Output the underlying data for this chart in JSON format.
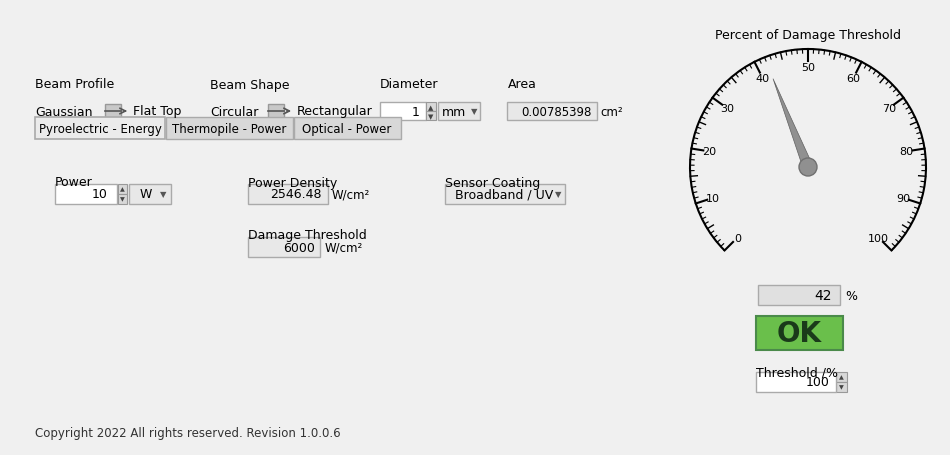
{
  "bg_color": "#f0f0f0",
  "title": "Percent of Damage Threshold",
  "gauge_value": 42,
  "ok_color": "#6abf4b",
  "ok_text": "OK",
  "ok_text_color": "#1a3a1a",
  "percent_value": "42",
  "threshold_value": "100",
  "beam_profile_label": "Beam Profile",
  "beam_shape_label": "Beam Shape",
  "gaussian_label": "Gaussian",
  "flat_top_label": "Flat Top",
  "circular_label": "Circular",
  "rectangular_label": "Rectangular",
  "diameter_label": "Diameter",
  "area_label": "Area",
  "diameter_value": "1",
  "diameter_unit": "mm",
  "area_value": "0.00785398",
  "area_unit": "cm²",
  "tab1": "Pyroelectric - Energy",
  "tab2": "Thermopile - Power",
  "tab3": "Optical - Power",
  "power_label": "Power",
  "power_value": "10",
  "power_unit": "W",
  "power_density_label": "Power Density",
  "power_density_value": "2546.48",
  "power_density_unit": "W/cm²",
  "sensor_coating_label": "Sensor Coating",
  "sensor_coating_value": "Broadband / UV",
  "damage_threshold_label": "Damage Threshold",
  "damage_threshold_value": "6000",
  "damage_threshold_unit": "W/cm²",
  "copyright_text": "Copyright 2022 All rights reserved. Revision 1.0.0.6",
  "threshold_label": "Threshold /%"
}
